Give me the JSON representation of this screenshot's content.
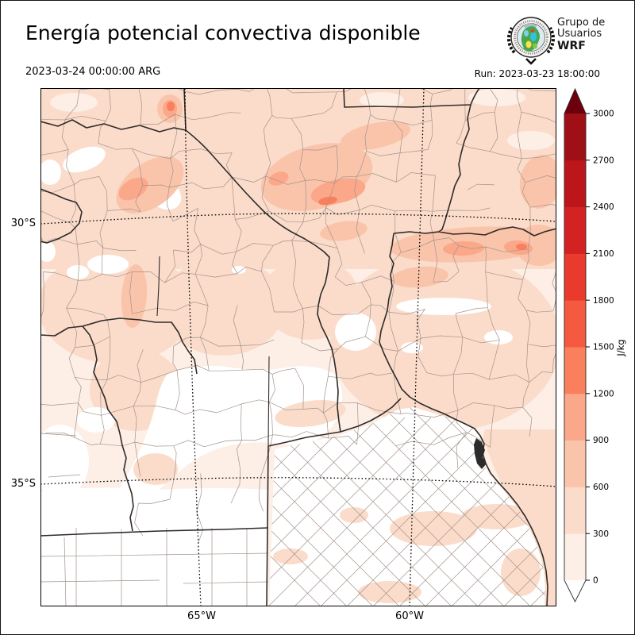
{
  "header": {
    "title": "Energía potencial convectiva disponible",
    "valid_time": "2023-03-24 00:00:00 ARG",
    "run": "Run: 2023-03-23 18:00:00",
    "logo": {
      "line1": "Grupo de",
      "line2": "Usuarios",
      "line3": "WRF"
    }
  },
  "axes": {
    "lat_top": "30°S",
    "lat_bottom": "35°S",
    "lon_left": "65°W",
    "lon_right": "60°W"
  },
  "colorbar": {
    "unit": "J/kg",
    "ticks": [
      "0",
      "300",
      "600",
      "900",
      "1200",
      "1500",
      "1800",
      "2100",
      "2400",
      "2700",
      "3000"
    ]
  },
  "map_colors": {
    "departments": "#a3938b",
    "provinces": "#2e2b29",
    "gridlines": "#000000",
    "amba": "#2b2b2b"
  },
  "chart_data": {
    "type": "heatmap",
    "variable": "CAPE (Energía potencial convectiva disponible)",
    "unit": "J/kg",
    "valid_time": "2023-03-24 00:00:00 ARG",
    "model_run": "2023-03-23 18:00:00",
    "levels": [
      0,
      300,
      600,
      900,
      1200,
      1500,
      1800,
      2100,
      2400,
      2700,
      3000
    ],
    "extend": "both",
    "palette": {
      "under": "#ffffff",
      "bins": [
        "#fdeee6",
        "#fbdcca",
        "#fac4ab",
        "#fba78a",
        "#fa7f5d",
        "#f5593f",
        "#e93a2d",
        "#d32221",
        "#bc161b",
        "#9f1016"
      ],
      "over": "#6c000d"
    },
    "lat_gridlines": [
      "30°S",
      "35°S"
    ],
    "lon_gridlines": [
      "65°W",
      "60°W"
    ],
    "legend_position": "right",
    "observed_field": [
      {
        "region": "N-central band (S Santiago del Estero / Tucumán–N Córdoba)",
        "approx_cape_jkg": "600-1500"
      },
      {
        "region": "E-W band near 30°S east of ~61.5°W (N Santa Fe / S Chaco / Corrientes)",
        "approx_cape_jkg": "600-1300"
      },
      {
        "region": "small maximum near 64.3°W 27.6°S",
        "approx_cape_jkg": "900-1400"
      },
      {
        "region": "most of the remaining domain",
        "approx_cape_jkg": "300-600"
      },
      {
        "region": "SW quadrant, central Buenos Aires, La Pampa",
        "approx_cape_jkg": "0-300 down to 0"
      }
    ]
  }
}
